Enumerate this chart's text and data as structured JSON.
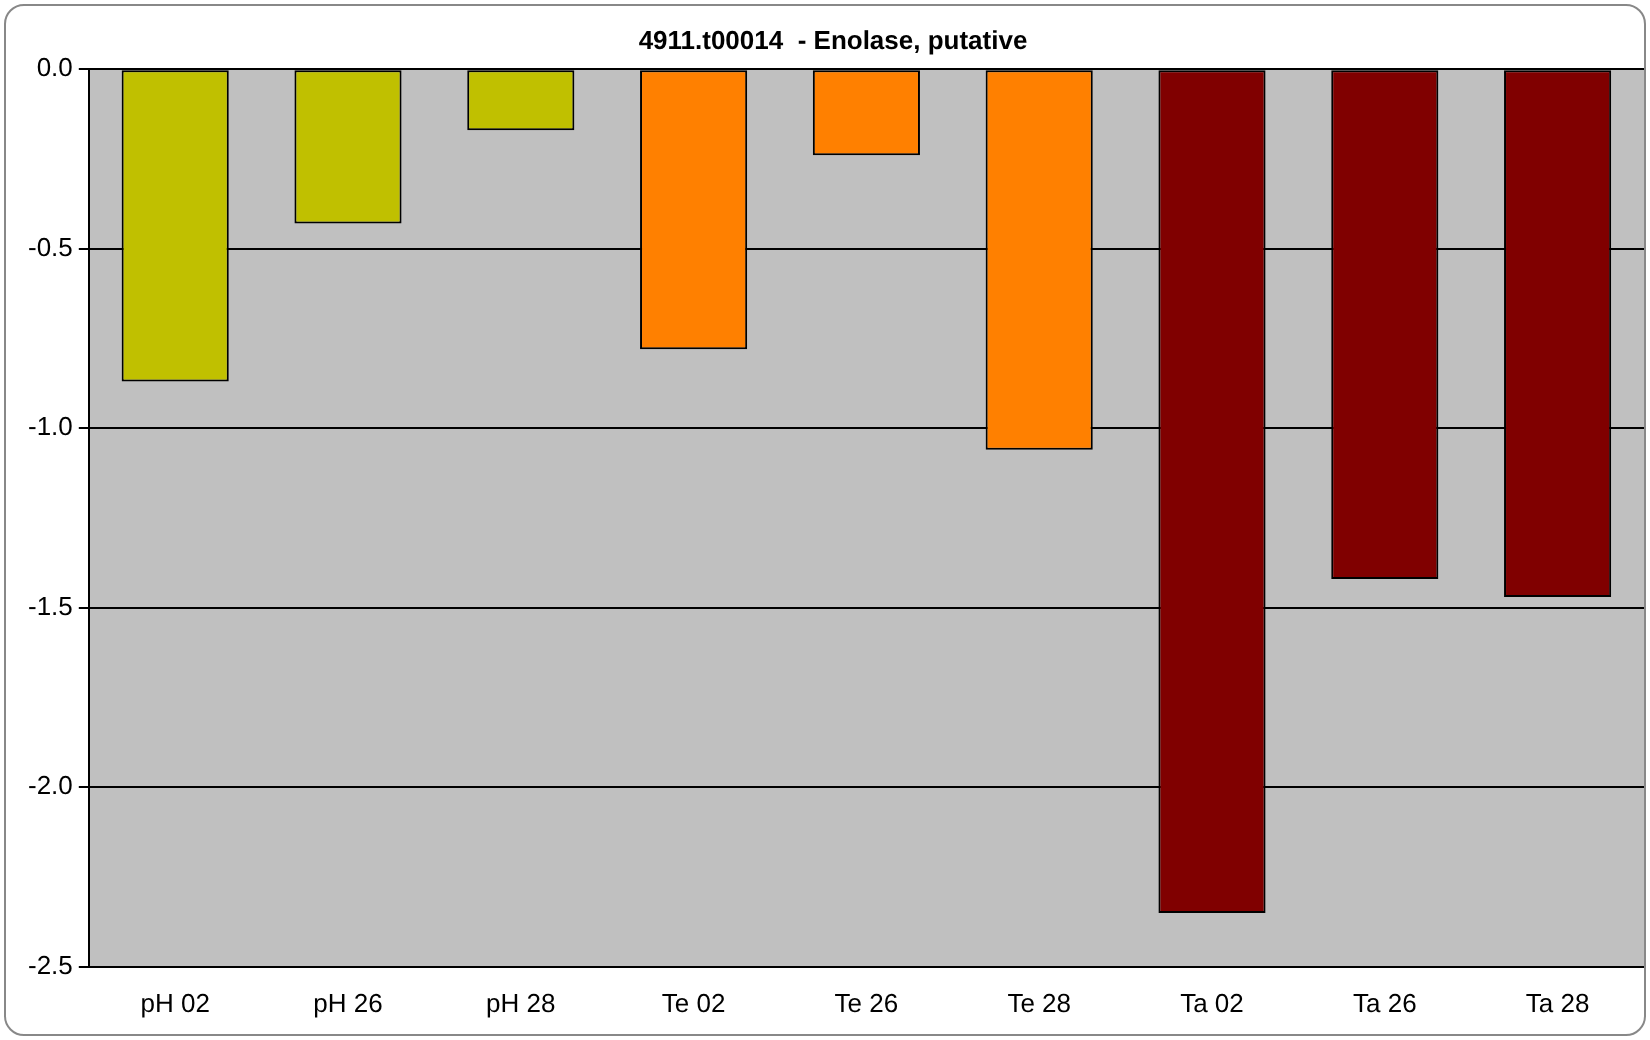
{
  "chart_data": {
    "type": "bar",
    "title": "4911.t00014  - Enolase, putative",
    "categories": [
      "pH 02",
      "pH 26",
      "pH 28",
      "Te 02",
      "Te 26",
      "Te 28",
      "Ta 02",
      "Ta 26",
      "Ta 28"
    ],
    "values": [
      -0.87,
      -0.43,
      -0.17,
      -0.78,
      -0.24,
      -1.06,
      -2.35,
      -1.42,
      -1.47
    ],
    "colors": [
      "#c0c000",
      "#c0c000",
      "#c0c000",
      "#ff8000",
      "#ff8000",
      "#ff8000",
      "#800000",
      "#800000",
      "#800000"
    ],
    "ylim": [
      -2.5,
      0
    ],
    "yticks": [
      {
        "value": -2.5,
        "label": "-2.5"
      },
      {
        "value": -2,
        "label": "-2.0"
      },
      {
        "value": -1.5,
        "label": "-1.5"
      },
      {
        "value": -1,
        "label": "-1.0"
      },
      {
        "value": -0.5,
        "label": "-0.5"
      },
      {
        "value": 0,
        "label": "0.0"
      }
    ],
    "grid": "y",
    "legend": false
  }
}
